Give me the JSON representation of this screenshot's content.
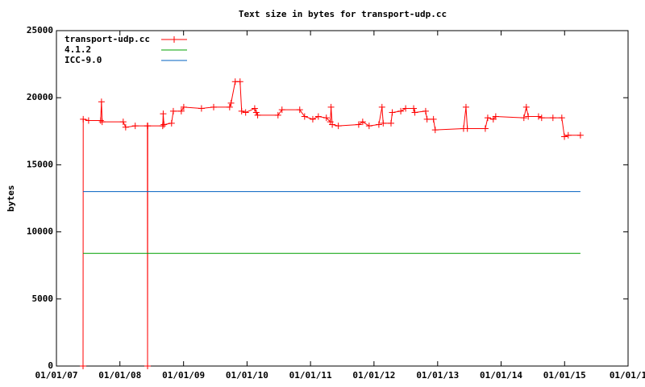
{
  "chart_data": {
    "type": "line",
    "title": "Text size in bytes for transport-udp.cc",
    "y_label": "bytes",
    "xlim": [
      "2007-01-01",
      "2016-01-01"
    ],
    "xticks": [
      {
        "value": "2007-01-01",
        "label": "01/01/07"
      },
      {
        "value": "2008-01-01",
        "label": "01/01/08"
      },
      {
        "value": "2009-01-01",
        "label": "01/01/09"
      },
      {
        "value": "2010-01-01",
        "label": "01/01/10"
      },
      {
        "value": "2011-01-01",
        "label": "01/01/11"
      },
      {
        "value": "2012-01-01",
        "label": "01/01/12"
      },
      {
        "value": "2013-01-01",
        "label": "01/01/13"
      },
      {
        "value": "2014-01-01",
        "label": "01/01/14"
      },
      {
        "value": "2015-01-01",
        "label": "01/01/15"
      },
      {
        "value": "2016-01-01",
        "label": "01/01/1"
      }
    ],
    "ylim": [
      0,
      25000
    ],
    "yticks": [
      0,
      5000,
      10000,
      15000,
      20000,
      25000
    ],
    "grid": false,
    "legend": "top-left",
    "series": [
      {
        "name": "transport-udp.cc",
        "color": "#ff0000",
        "markers": true,
        "x": [
          "2007-06-03",
          "2007-06-04",
          "2007-07-05",
          "2007-09-12",
          "2007-09-17",
          "2007-09-21",
          "2008-01-20",
          "2008-02-03",
          "2008-03-29",
          "2008-06-07",
          "2008-06-08",
          "2008-06-09",
          "2008-09-03",
          "2008-09-06",
          "2008-09-10",
          "2008-10-24",
          "2008-11-03",
          "2008-12-19",
          "2009-01-02",
          "2009-04-14",
          "2009-06-23",
          "2009-09-23",
          "2009-10-01",
          "2009-10-25",
          "2009-11-22",
          "2009-12-01",
          "2009-12-24",
          "2010-02-14",
          "2010-02-23",
          "2010-03-03",
          "2010-06-28",
          "2010-07-21",
          "2010-10-31",
          "2010-11-28",
          "2011-01-14",
          "2011-02-15",
          "2011-04-02",
          "2011-04-25",
          "2011-04-29",
          "2011-05-06",
          "2011-06-10",
          "2011-10-05",
          "2011-10-28",
          "2011-12-04",
          "2012-01-29",
          "2012-02-16",
          "2012-02-23",
          "2012-04-08",
          "2012-04-15",
          "2012-06-03",
          "2012-07-01",
          "2012-08-16",
          "2012-08-23",
          "2012-10-24",
          "2012-11-01",
          "2012-12-08",
          "2012-12-18",
          "2013-05-30",
          "2013-06-13",
          "2013-06-21",
          "2013-10-02",
          "2013-10-16",
          "2013-11-17",
          "2013-12-01",
          "2014-05-12",
          "2014-05-26",
          "2014-06-06",
          "2014-08-04",
          "2014-08-22",
          "2014-10-26",
          "2014-12-16",
          "2014-12-31",
          "2015-01-22",
          "2015-04-02"
        ],
        "values": [
          0,
          18400,
          18300,
          18300,
          19700,
          18200,
          18200,
          17800,
          17900,
          17900,
          0,
          17900,
          17900,
          18800,
          18000,
          18100,
          19000,
          19000,
          19300,
          19200,
          19300,
          19300,
          19600,
          21200,
          21200,
          19000,
          18900,
          19200,
          18900,
          18700,
          18700,
          19100,
          19100,
          18600,
          18400,
          18600,
          18500,
          18200,
          19300,
          18000,
          17900,
          18000,
          18200,
          17900,
          18000,
          19300,
          18100,
          18100,
          18900,
          19000,
          19200,
          19200,
          18900,
          19000,
          18400,
          18400,
          17600,
          17700,
          19300,
          17700,
          17700,
          18500,
          18400,
          18600,
          18500,
          19300,
          18600,
          18600,
          18500,
          18500,
          18500,
          17100,
          17200,
          17200
        ]
      },
      {
        "name": "4.1.2",
        "color": "#00a000",
        "markers": false,
        "x": [
          "2007-06-03",
          "2015-04-02"
        ],
        "values": [
          8400,
          8400
        ]
      },
      {
        "name": "ICC-9.0",
        "color": "#0060c0",
        "markers": false,
        "x": [
          "2007-06-03",
          "2015-04-02"
        ],
        "values": [
          13000,
          13000
        ]
      }
    ]
  }
}
